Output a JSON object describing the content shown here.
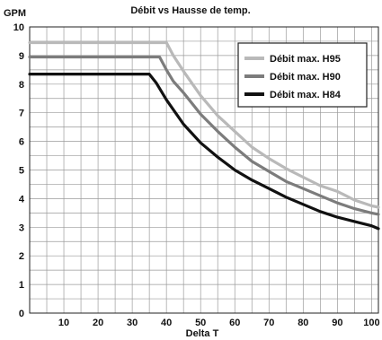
{
  "chart_data": {
    "type": "line",
    "title": "Débit vs Hausse de temp.",
    "xlabel": "Delta T",
    "ylabel": "GPM",
    "xlim": [
      0,
      102
    ],
    "ylim": [
      0,
      10
    ],
    "x_ticks": [
      10,
      20,
      30,
      40,
      50,
      60,
      70,
      80,
      90,
      100
    ],
    "y_ticks": [
      0,
      1,
      2,
      3,
      4,
      5,
      6,
      7,
      8,
      9,
      10
    ],
    "x_minor_step": 5,
    "y_minor_step": 0.5,
    "grid": true,
    "legend_position": "top-right",
    "series": [
      {
        "name": "Débit max. H95",
        "color": "#b9b9b9",
        "x": [
          0,
          40,
          42,
          45,
          50,
          55,
          60,
          65,
          70,
          75,
          80,
          85,
          90,
          95,
          100,
          102
        ],
        "y": [
          9.45,
          9.45,
          9.0,
          8.45,
          7.6,
          6.9,
          6.35,
          5.8,
          5.4,
          5.05,
          4.75,
          4.45,
          4.25,
          3.95,
          3.75,
          3.7
        ]
      },
      {
        "name": "Débit max. H90",
        "color": "#7c7c7c",
        "x": [
          0,
          38,
          40,
          42,
          45,
          50,
          55,
          60,
          65,
          70,
          75,
          80,
          85,
          90,
          95,
          100,
          102
        ],
        "y": [
          8.95,
          8.95,
          8.5,
          8.1,
          7.7,
          6.95,
          6.35,
          5.8,
          5.3,
          4.95,
          4.6,
          4.35,
          4.1,
          3.85,
          3.65,
          3.5,
          3.45
        ]
      },
      {
        "name": "Débit max. H84",
        "color": "#111111",
        "x": [
          0,
          35,
          37,
          40,
          45,
          50,
          55,
          60,
          65,
          70,
          75,
          80,
          85,
          90,
          95,
          100,
          102
        ],
        "y": [
          8.35,
          8.35,
          8.05,
          7.45,
          6.6,
          5.95,
          5.45,
          5.0,
          4.65,
          4.35,
          4.05,
          3.8,
          3.55,
          3.35,
          3.2,
          3.05,
          2.95
        ]
      }
    ]
  }
}
